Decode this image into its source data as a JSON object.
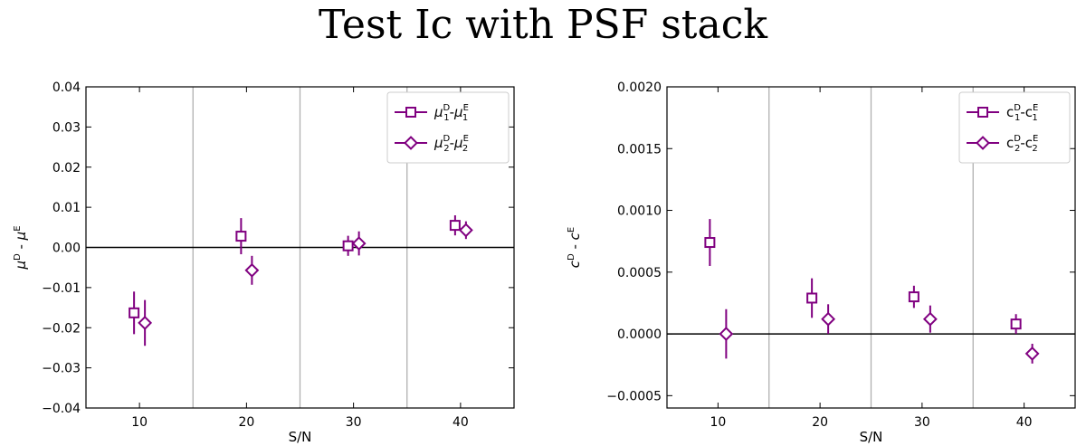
{
  "title": "Test Ic with PSF stack",
  "colors": {
    "series": "#800080",
    "separator": "#b0b0b0",
    "zero_line": "#000000"
  },
  "chart_data": [
    {
      "type": "scatter",
      "name": "mu-panel",
      "xlabel": "S/N",
      "ylabel": "μ^D - μ^E",
      "xlim": [
        5,
        45
      ],
      "ylim": [
        -0.04,
        0.04
      ],
      "xticks": [
        10,
        20,
        30,
        40
      ],
      "yticks": [
        -0.04,
        -0.03,
        -0.02,
        -0.01,
        0.0,
        0.01,
        0.02,
        0.03,
        0.04
      ],
      "ytick_labels": [
        "−0.04",
        "−0.03",
        "−0.02",
        "−0.01",
        "0.00",
        "0.01",
        "0.02",
        "0.03",
        "0.04"
      ],
      "separators": [
        15,
        25,
        35
      ],
      "hline": 0,
      "grid": false,
      "legend_placement": "top-right",
      "series": [
        {
          "name": "μ1D-μ1E",
          "label": {
            "sym": "μ",
            "sub": "1",
            "sym2": "μ",
            "sub2": "1"
          },
          "marker": "square",
          "points": [
            {
              "x": 10,
              "y": -0.0163,
              "err": 0.0053
            },
            {
              "x": 20,
              "y": 0.0028,
              "err": 0.0045
            },
            {
              "x": 30,
              "y": 0.0004,
              "err": 0.0025
            },
            {
              "x": 40,
              "y": 0.0055,
              "err": 0.0025
            }
          ]
        },
        {
          "name": "μ2D-μ2E",
          "label": {
            "sym": "μ",
            "sub": "2",
            "sym2": "μ",
            "sub2": "2"
          },
          "marker": "diamond",
          "points": [
            {
              "x": 10,
              "y": -0.0188,
              "err": 0.0057
            },
            {
              "x": 20,
              "y": -0.0057,
              "err": 0.0036
            },
            {
              "x": 30,
              "y": 0.001,
              "err": 0.003
            },
            {
              "x": 40,
              "y": 0.0043,
              "err": 0.0022
            }
          ]
        }
      ]
    },
    {
      "type": "scatter",
      "name": "c-panel",
      "xlabel": "S/N",
      "ylabel": "c^D - c^E",
      "xlim": [
        5,
        45
      ],
      "ylim": [
        -0.0006,
        0.002
      ],
      "xticks": [
        10,
        20,
        30,
        40
      ],
      "yticks": [
        -0.0005,
        0.0,
        0.0005,
        0.001,
        0.0015,
        0.002
      ],
      "ytick_labels": [
        "−0.0005",
        "0.0000",
        "0.0005",
        "0.0010",
        "0.0015",
        "0.0020"
      ],
      "separators": [
        15,
        25,
        35
      ],
      "hline": 0,
      "grid": false,
      "legend_placement": "top-right",
      "series": [
        {
          "name": "c1D-c1E",
          "label": {
            "sym": "c",
            "sub": "1",
            "sym2": "c",
            "sub2": "1"
          },
          "marker": "square",
          "points": [
            {
              "x": 10,
              "y": 0.00074,
              "err": 0.00019
            },
            {
              "x": 20,
              "y": 0.00029,
              "err": 0.00016
            },
            {
              "x": 30,
              "y": 0.0003,
              "err": 9e-05
            },
            {
              "x": 40,
              "y": 8e-05,
              "err": 8e-05
            }
          ]
        },
        {
          "name": "c2D-c2E",
          "label": {
            "sym": "c",
            "sub": "2",
            "sym2": "c",
            "sub2": "2"
          },
          "marker": "diamond",
          "points": [
            {
              "x": 10,
              "y": 0.0,
              "err": 0.0002
            },
            {
              "x": 20,
              "y": 0.00012,
              "err": 0.00012
            },
            {
              "x": 30,
              "y": 0.00012,
              "err": 0.00011
            },
            {
              "x": 40,
              "y": -0.00016,
              "err": 8e-05
            }
          ]
        }
      ]
    }
  ]
}
